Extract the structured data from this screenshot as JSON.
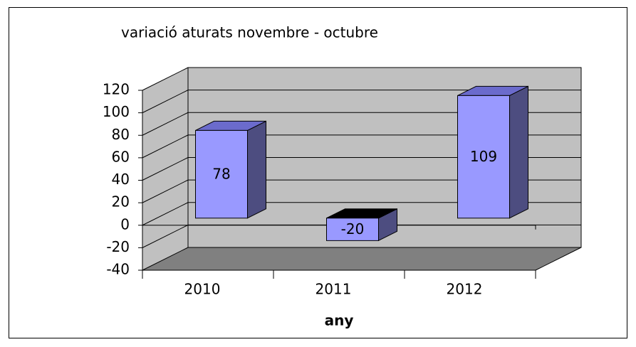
{
  "chart_data": {
    "type": "bar3d",
    "title": "variació aturats novembre - octubre",
    "x_label": "any",
    "categories": [
      "2010",
      "2011",
      "2012"
    ],
    "values": [
      78,
      -20,
      109
    ],
    "color": "#9999ff",
    "ylim": [
      -40,
      120
    ],
    "yticks": [
      -40,
      -20,
      0,
      20,
      40,
      60,
      80,
      100,
      120
    ],
    "grid": true
  }
}
